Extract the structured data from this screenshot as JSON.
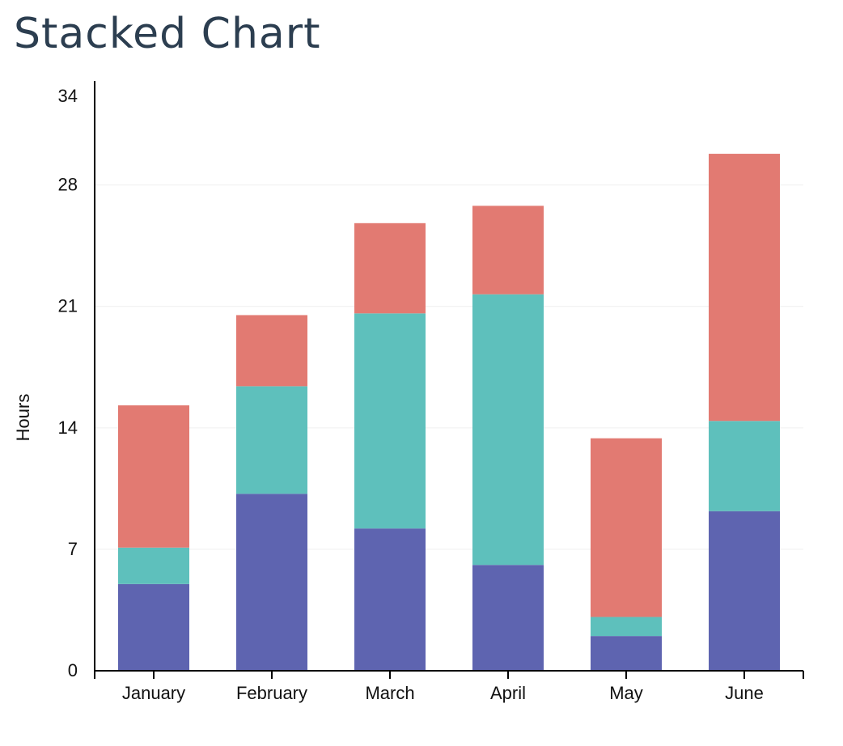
{
  "page": {
    "title": "Stacked Chart"
  },
  "chart_data": {
    "type": "bar",
    "stacked": true,
    "title": "Stacked Chart",
    "xlabel": "",
    "ylabel": "Hours",
    "ylim": [
      0,
      34
    ],
    "yticks": [
      0,
      7,
      14,
      21,
      28,
      34
    ],
    "grid": true,
    "categories": [
      "January",
      "February",
      "March",
      "April",
      "May",
      "June"
    ],
    "series": [
      {
        "color": "#5e64b0",
        "values": [
          5,
          10.2,
          8.2,
          6.1,
          2,
          9.2
        ]
      },
      {
        "color": "#5ec0bc",
        "values": [
          2.1,
          6.2,
          12.4,
          15.6,
          1.1,
          5.2
        ]
      },
      {
        "color": "#e27a72",
        "values": [
          8.2,
          4.1,
          5.2,
          5.1,
          10.3,
          15.4
        ]
      }
    ]
  }
}
